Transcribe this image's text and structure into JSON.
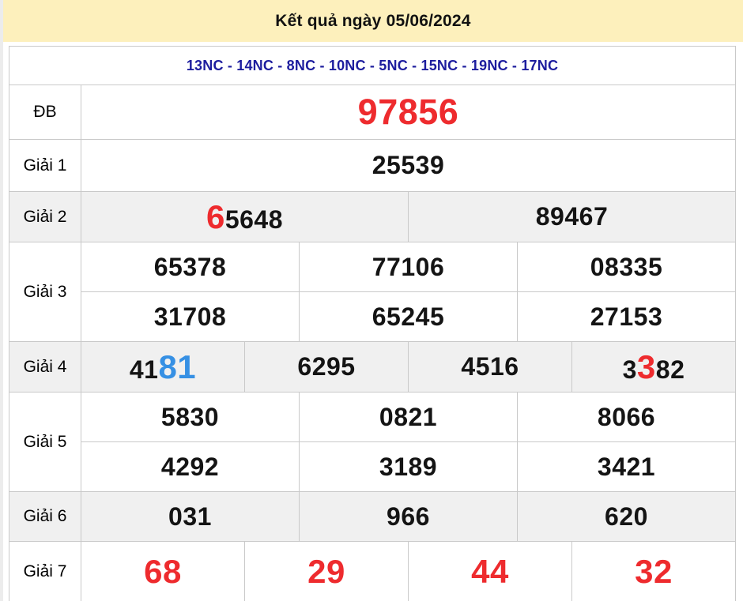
{
  "header": {
    "title": "Kết quả ngày 05/06/2024"
  },
  "stations": {
    "text": "13NC - 14NC - 8NC - 10NC - 5NC - 15NC - 19NC - 17NC"
  },
  "colors": {
    "header_bg": "#fdf0bc",
    "shade_bg": "#f0f0f0",
    "red": "#ee2b2e",
    "blue": "#3690e4",
    "navy": "#1d1d9e",
    "border": "#c9c9c9",
    "text": "#141414"
  },
  "table": {
    "rows": [
      {
        "key": "db",
        "label": "ĐB",
        "shade": false,
        "lines": [
          [
            {
              "span": 12,
              "parts": [
                {
                  "t": "97856",
                  "c": "red",
                  "s": "xl"
                }
              ]
            }
          ]
        ]
      },
      {
        "key": "g1",
        "label": "Giải 1",
        "shade": false,
        "lines": [
          [
            {
              "span": 12,
              "parts": [
                {
                  "t": "25539"
                }
              ]
            }
          ]
        ]
      },
      {
        "key": "g2",
        "label": "Giải 2",
        "shade": true,
        "lines": [
          [
            {
              "span": 6,
              "parts": [
                {
                  "t": "6",
                  "c": "red",
                  "s": "big"
                },
                {
                  "t": "5648"
                }
              ]
            },
            {
              "span": 6,
              "parts": [
                {
                  "t": "89467"
                }
              ]
            }
          ]
        ]
      },
      {
        "key": "g3",
        "label": "Giải 3",
        "shade": false,
        "lines": [
          [
            {
              "span": 4,
              "parts": [
                {
                  "t": "65378"
                }
              ]
            },
            {
              "span": 4,
              "parts": [
                {
                  "t": "77106"
                }
              ]
            },
            {
              "span": 4,
              "parts": [
                {
                  "t": "08335"
                }
              ]
            }
          ],
          [
            {
              "span": 4,
              "parts": [
                {
                  "t": "31708"
                }
              ]
            },
            {
              "span": 4,
              "parts": [
                {
                  "t": "65245"
                }
              ]
            },
            {
              "span": 4,
              "parts": [
                {
                  "t": "27153"
                }
              ]
            }
          ]
        ]
      },
      {
        "key": "g4",
        "label": "Giải 4",
        "shade": true,
        "lines": [
          [
            {
              "span": 3,
              "parts": [
                {
                  "t": "41"
                },
                {
                  "t": "81",
                  "c": "blue",
                  "s": "big"
                }
              ]
            },
            {
              "span": 3,
              "parts": [
                {
                  "t": "6295"
                }
              ]
            },
            {
              "span": 3,
              "parts": [
                {
                  "t": "4516"
                }
              ]
            },
            {
              "span": 3,
              "parts": [
                {
                  "t": "3"
                },
                {
                  "t": "3",
                  "c": "red",
                  "s": "big"
                },
                {
                  "t": "82"
                }
              ]
            }
          ]
        ]
      },
      {
        "key": "g5",
        "label": "Giải 5",
        "shade": false,
        "lines": [
          [
            {
              "span": 4,
              "parts": [
                {
                  "t": "5830"
                }
              ]
            },
            {
              "span": 4,
              "parts": [
                {
                  "t": "0821"
                }
              ]
            },
            {
              "span": 4,
              "parts": [
                {
                  "t": "8066"
                }
              ]
            }
          ],
          [
            {
              "span": 4,
              "parts": [
                {
                  "t": "4292"
                }
              ]
            },
            {
              "span": 4,
              "parts": [
                {
                  "t": "3189"
                }
              ]
            },
            {
              "span": 4,
              "parts": [
                {
                  "t": "3421"
                }
              ]
            }
          ]
        ]
      },
      {
        "key": "g6",
        "label": "Giải 6",
        "shade": true,
        "lines": [
          [
            {
              "span": 4,
              "parts": [
                {
                  "t": "031"
                }
              ]
            },
            {
              "span": 4,
              "parts": [
                {
                  "t": "966"
                }
              ]
            },
            {
              "span": 4,
              "parts": [
                {
                  "t": "620"
                }
              ]
            }
          ]
        ]
      },
      {
        "key": "g7",
        "label": "Giải 7",
        "shade": false,
        "lines": [
          [
            {
              "span": 3,
              "parts": [
                {
                  "t": "68",
                  "c": "red",
                  "s": "big"
                }
              ]
            },
            {
              "span": 3,
              "parts": [
                {
                  "t": "29",
                  "c": "red",
                  "s": "big"
                }
              ]
            },
            {
              "span": 3,
              "parts": [
                {
                  "t": "44",
                  "c": "red",
                  "s": "big"
                }
              ]
            },
            {
              "span": 3,
              "parts": [
                {
                  "t": "32",
                  "c": "red",
                  "s": "big"
                }
              ]
            }
          ]
        ]
      }
    ]
  }
}
